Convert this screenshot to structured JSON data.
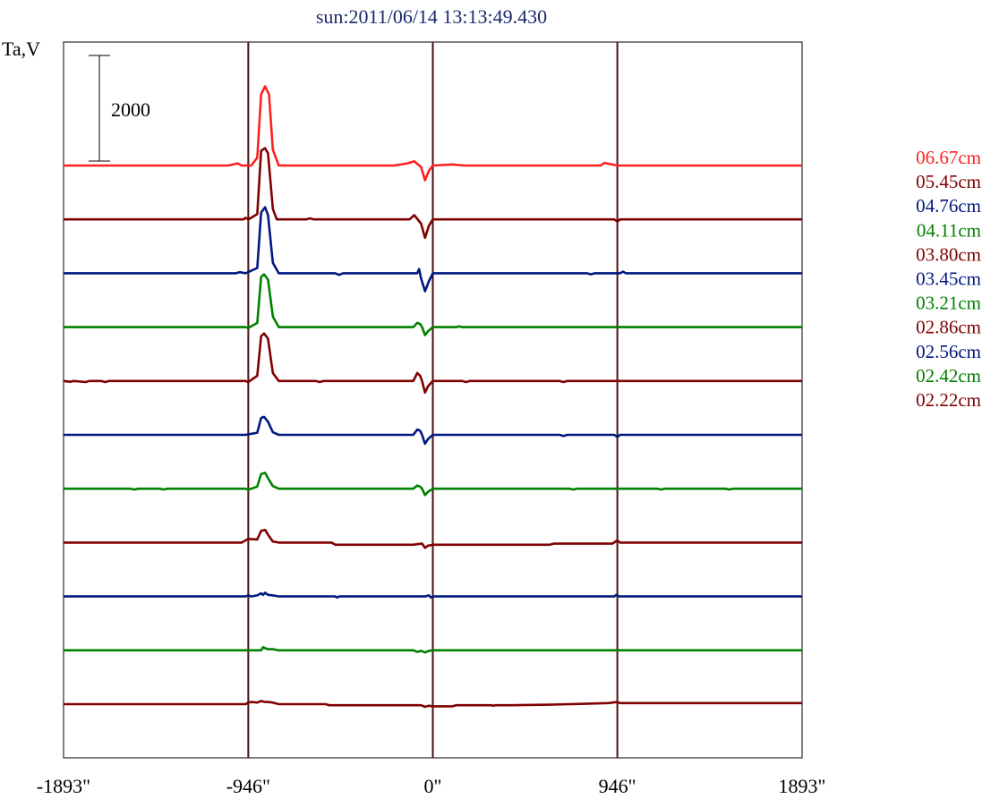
{
  "title": "sun:2011/06/14 13:13:49.430",
  "ylabel": "Ta,V",
  "scale_bar": {
    "value": 2000,
    "label": "2000"
  },
  "chart_data": {
    "type": "line",
    "title": "sun:2011/06/14 13:13:49.430",
    "xlabel": "",
    "ylabel": "Ta,V",
    "xlim": [
      -1893,
      1893
    ],
    "x_ticks": [
      -1893,
      -946,
      0,
      946,
      1893
    ],
    "x_tick_labels": [
      "-1893\"",
      "-946\"",
      "0\"",
      "946\"",
      "1893\""
    ],
    "vertical_markers": [
      -946,
      0,
      946
    ],
    "grid": false,
    "legend_position": "right",
    "scale_bar_value": 2000,
    "series": [
      {
        "name": "06.67cm",
        "color": "#ff2020",
        "points": [
          [
            -1893,
            0
          ],
          [
            -1050,
            0
          ],
          [
            -1000,
            40
          ],
          [
            -980,
            0
          ],
          [
            -930,
            0
          ],
          [
            -900,
            150
          ],
          [
            -880,
            1350
          ],
          [
            -860,
            1500
          ],
          [
            -840,
            1350
          ],
          [
            -820,
            300
          ],
          [
            -790,
            0
          ],
          [
            -200,
            0
          ],
          [
            -130,
            40
          ],
          [
            -95,
            80
          ],
          [
            -60,
            -30
          ],
          [
            -40,
            -280
          ],
          [
            -20,
            -100
          ],
          [
            0,
            0
          ],
          [
            100,
            20
          ],
          [
            160,
            0
          ],
          [
            860,
            0
          ],
          [
            880,
            50
          ],
          [
            946,
            0
          ],
          [
            1893,
            0
          ]
        ]
      },
      {
        "name": "05.45cm",
        "color": "#800000",
        "points": [
          [
            -1893,
            0
          ],
          [
            -970,
            0
          ],
          [
            -960,
            30
          ],
          [
            -946,
            0
          ],
          [
            -900,
            100
          ],
          [
            -880,
            1300
          ],
          [
            -860,
            1350
          ],
          [
            -845,
            1250
          ],
          [
            -820,
            200
          ],
          [
            -800,
            0
          ],
          [
            -650,
            0
          ],
          [
            -630,
            20
          ],
          [
            -610,
            0
          ],
          [
            -120,
            0
          ],
          [
            -95,
            80
          ],
          [
            -60,
            -80
          ],
          [
            -40,
            -350
          ],
          [
            -20,
            -120
          ],
          [
            0,
            0
          ],
          [
            930,
            0
          ],
          [
            946,
            -40
          ],
          [
            960,
            0
          ],
          [
            1893,
            0
          ]
        ]
      },
      {
        "name": "04.76cm",
        "color": "#001880",
        "points": [
          [
            -1893,
            0
          ],
          [
            -1010,
            0
          ],
          [
            -990,
            20
          ],
          [
            -960,
            0
          ],
          [
            -900,
            100
          ],
          [
            -880,
            1150
          ],
          [
            -860,
            1250
          ],
          [
            -845,
            1100
          ],
          [
            -820,
            200
          ],
          [
            -790,
            0
          ],
          [
            -500,
            0
          ],
          [
            -480,
            -30
          ],
          [
            -460,
            0
          ],
          [
            -80,
            0
          ],
          [
            -70,
            80
          ],
          [
            -60,
            -100
          ],
          [
            -40,
            -340
          ],
          [
            -20,
            -150
          ],
          [
            0,
            0
          ],
          [
            790,
            0
          ],
          [
            810,
            -20
          ],
          [
            830,
            0
          ],
          [
            960,
            0
          ],
          [
            975,
            30
          ],
          [
            990,
            0
          ],
          [
            1893,
            0
          ]
        ]
      },
      {
        "name": "04.11cm",
        "color": "#008000",
        "points": [
          [
            -1893,
            0
          ],
          [
            -960,
            0
          ],
          [
            -946,
            -15
          ],
          [
            -900,
            80
          ],
          [
            -880,
            950
          ],
          [
            -865,
            1000
          ],
          [
            -845,
            900
          ],
          [
            -820,
            200
          ],
          [
            -790,
            0
          ],
          [
            -100,
            0
          ],
          [
            -80,
            80
          ],
          [
            -65,
            60
          ],
          [
            -55,
            0
          ],
          [
            -40,
            -150
          ],
          [
            -25,
            -80
          ],
          [
            0,
            0
          ],
          [
            120,
            0
          ],
          [
            135,
            15
          ],
          [
            150,
            0
          ],
          [
            1893,
            0
          ]
        ]
      },
      {
        "name": "03.80cm",
        "color": "#800000",
        "points": [
          [
            -1893,
            0
          ],
          [
            -1860,
            -15
          ],
          [
            -1840,
            0
          ],
          [
            -1780,
            -20
          ],
          [
            -1760,
            0
          ],
          [
            -1700,
            0
          ],
          [
            -1680,
            -20
          ],
          [
            -1660,
            0
          ],
          [
            -960,
            0
          ],
          [
            -946,
            -20
          ],
          [
            -900,
            100
          ],
          [
            -880,
            850
          ],
          [
            -865,
            900
          ],
          [
            -845,
            800
          ],
          [
            -820,
            150
          ],
          [
            -790,
            0
          ],
          [
            -600,
            0
          ],
          [
            -580,
            -20
          ],
          [
            -560,
            0
          ],
          [
            -100,
            0
          ],
          [
            -80,
            150
          ],
          [
            -65,
            100
          ],
          [
            -55,
            0
          ],
          [
            -40,
            -220
          ],
          [
            -25,
            -100
          ],
          [
            0,
            0
          ],
          [
            150,
            0
          ],
          [
            170,
            -20
          ],
          [
            190,
            0
          ],
          [
            650,
            0
          ],
          [
            670,
            -20
          ],
          [
            690,
            0
          ],
          [
            1893,
            0
          ]
        ]
      },
      {
        "name": "03.45cm",
        "color": "#001880",
        "points": [
          [
            -1893,
            0
          ],
          [
            -960,
            0
          ],
          [
            -900,
            40
          ],
          [
            -880,
            320
          ],
          [
            -865,
            340
          ],
          [
            -845,
            250
          ],
          [
            -820,
            50
          ],
          [
            -790,
            0
          ],
          [
            -100,
            0
          ],
          [
            -80,
            100
          ],
          [
            -65,
            80
          ],
          [
            -55,
            0
          ],
          [
            -40,
            -170
          ],
          [
            -25,
            -80
          ],
          [
            0,
            0
          ],
          [
            650,
            0
          ],
          [
            670,
            -20
          ],
          [
            690,
            0
          ],
          [
            930,
            0
          ],
          [
            946,
            -40
          ],
          [
            960,
            0
          ],
          [
            1893,
            0
          ]
        ]
      },
      {
        "name": "03.21cm",
        "color": "#008000",
        "points": [
          [
            -1893,
            0
          ],
          [
            -1550,
            0
          ],
          [
            -1530,
            -15
          ],
          [
            -1510,
            0
          ],
          [
            -1400,
            0
          ],
          [
            -1380,
            -15
          ],
          [
            -1360,
            0
          ],
          [
            -960,
            0
          ],
          [
            -946,
            -20
          ],
          [
            -900,
            40
          ],
          [
            -880,
            280
          ],
          [
            -860,
            300
          ],
          [
            -845,
            200
          ],
          [
            -820,
            50
          ],
          [
            -790,
            0
          ],
          [
            -100,
            0
          ],
          [
            -80,
            60
          ],
          [
            -65,
            40
          ],
          [
            -55,
            0
          ],
          [
            -40,
            -120
          ],
          [
            -25,
            -60
          ],
          [
            0,
            0
          ],
          [
            700,
            0
          ],
          [
            720,
            -15
          ],
          [
            740,
            0
          ],
          [
            1150,
            0
          ],
          [
            1170,
            -15
          ],
          [
            1190,
            0
          ],
          [
            1500,
            0
          ],
          [
            1520,
            -15
          ],
          [
            1540,
            0
          ],
          [
            1893,
            0
          ]
        ]
      },
      {
        "name": "02.86cm",
        "color": "#800000",
        "points": [
          [
            -1893,
            0
          ],
          [
            -980,
            0
          ],
          [
            -960,
            40
          ],
          [
            -946,
            70
          ],
          [
            -900,
            60
          ],
          [
            -880,
            220
          ],
          [
            -860,
            240
          ],
          [
            -845,
            150
          ],
          [
            -820,
            20
          ],
          [
            -790,
            0
          ],
          [
            -520,
            0
          ],
          [
            -500,
            -40
          ],
          [
            -200,
            -40
          ],
          [
            -100,
            -40
          ],
          [
            -80,
            -30
          ],
          [
            -55,
            -20
          ],
          [
            -40,
            -100
          ],
          [
            -25,
            -60
          ],
          [
            0,
            -40
          ],
          [
            600,
            -40
          ],
          [
            620,
            -20
          ],
          [
            920,
            -20
          ],
          [
            946,
            40
          ],
          [
            960,
            0
          ],
          [
            1893,
            0
          ]
        ]
      },
      {
        "name": "02.56cm",
        "color": "#001880",
        "points": [
          [
            -1893,
            0
          ],
          [
            -960,
            0
          ],
          [
            -946,
            20
          ],
          [
            -930,
            0
          ],
          [
            -900,
            20
          ],
          [
            -880,
            60
          ],
          [
            -870,
            30
          ],
          [
            -860,
            70
          ],
          [
            -845,
            30
          ],
          [
            -820,
            20
          ],
          [
            -790,
            0
          ],
          [
            -500,
            0
          ],
          [
            -490,
            -20
          ],
          [
            -480,
            0
          ],
          [
            -40,
            0
          ],
          [
            -20,
            20
          ],
          [
            -10,
            -20
          ],
          [
            0,
            0
          ],
          [
            930,
            0
          ],
          [
            940,
            30
          ],
          [
            955,
            0
          ],
          [
            1893,
            0
          ]
        ]
      },
      {
        "name": "02.42cm",
        "color": "#008000",
        "points": [
          [
            -1893,
            0
          ],
          [
            -880,
            0
          ],
          [
            -870,
            60
          ],
          [
            -860,
            40
          ],
          [
            -845,
            20
          ],
          [
            -820,
            20
          ],
          [
            -790,
            0
          ],
          [
            -100,
            0
          ],
          [
            -80,
            -30
          ],
          [
            -60,
            -10
          ],
          [
            -40,
            -40
          ],
          [
            -20,
            -10
          ],
          [
            0,
            0
          ],
          [
            1893,
            0
          ]
        ]
      },
      {
        "name": "02.22cm",
        "color": "#800000",
        "points": [
          [
            -1893,
            0
          ],
          [
            -960,
            0
          ],
          [
            -946,
            30
          ],
          [
            -930,
            40
          ],
          [
            -900,
            30
          ],
          [
            -880,
            60
          ],
          [
            -860,
            40
          ],
          [
            -845,
            40
          ],
          [
            -820,
            30
          ],
          [
            -790,
            0
          ],
          [
            -550,
            0
          ],
          [
            -530,
            -20
          ],
          [
            -60,
            -20
          ],
          [
            -40,
            -50
          ],
          [
            -20,
            -30
          ],
          [
            0,
            -40
          ],
          [
            100,
            -40
          ],
          [
            120,
            -20
          ],
          [
            300,
            -20
          ],
          [
            310,
            -30
          ],
          [
            320,
            -20
          ],
          [
            400,
            -20
          ],
          [
            600,
            -10
          ],
          [
            900,
            20
          ],
          [
            946,
            40
          ],
          [
            960,
            20
          ],
          [
            1000,
            20
          ],
          [
            1893,
            20
          ]
        ]
      }
    ]
  }
}
